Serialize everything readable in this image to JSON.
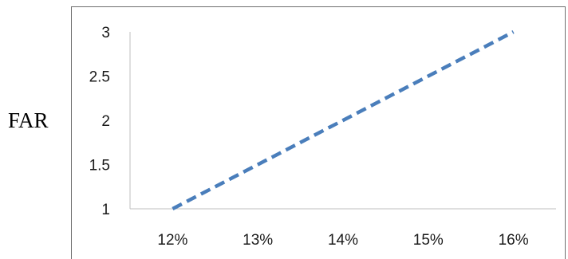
{
  "chart_data": {
    "type": "line",
    "x": [
      0.12,
      0.13,
      0.14,
      0.15,
      0.16
    ],
    "categories": [
      "12%",
      "13%",
      "14%",
      "15%",
      "16%"
    ],
    "series": [
      {
        "values": [
          1,
          1.5,
          2,
          2.5,
          3
        ]
      }
    ],
    "ylabel": "FAR",
    "xlabel": "",
    "ylim": [
      1,
      3
    ],
    "yticks": [
      "1",
      "1.5",
      "2",
      "2.5",
      "3"
    ],
    "grid": false,
    "legend": "none",
    "line_style": "dashed",
    "line_color": "#4a7ebb"
  }
}
